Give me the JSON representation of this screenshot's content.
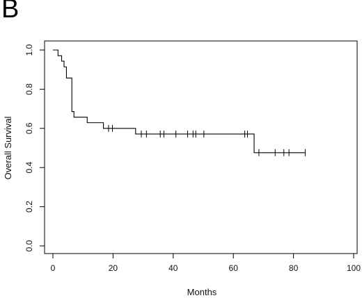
{
  "panel_label": "B",
  "chart_data": {
    "type": "line",
    "subtype": "kaplan-meier step curve",
    "title": "",
    "xlabel": "Months",
    "ylabel": "Overall Survival",
    "xlim": [
      0,
      100
    ],
    "ylim": [
      0,
      1.0
    ],
    "xticks": [
      0,
      20,
      40,
      60,
      80,
      100
    ],
    "yticks": [
      0.0,
      0.2,
      0.4,
      0.6,
      0.8,
      1.0
    ],
    "xtick_labels": [
      "0",
      "20",
      "40",
      "60",
      "80",
      "100"
    ],
    "ytick_labels": [
      "0.0",
      "0.2",
      "0.4",
      "0.6",
      "0.8",
      "1.0"
    ],
    "grid": false,
    "legend": "none",
    "series": [
      {
        "steps": [
          {
            "x": 0,
            "y": 1.0
          },
          {
            "x": 1.7,
            "y": 0.971
          },
          {
            "x": 2.9,
            "y": 0.943
          },
          {
            "x": 3.7,
            "y": 0.914
          },
          {
            "x": 4.5,
            "y": 0.857
          },
          {
            "x": 6.3,
            "y": 0.686
          },
          {
            "x": 7.0,
            "y": 0.657
          },
          {
            "x": 11.4,
            "y": 0.629
          },
          {
            "x": 16.8,
            "y": 0.6
          },
          {
            "x": 27.5,
            "y": 0.571
          },
          {
            "x": 66.9,
            "y": 0.476
          }
        ],
        "end_x": 83.9,
        "censored": [
          {
            "x": 18.5,
            "y": 0.6
          },
          {
            "x": 19.8,
            "y": 0.6
          },
          {
            "x": 29.4,
            "y": 0.571
          },
          {
            "x": 31.1,
            "y": 0.571
          },
          {
            "x": 35.7,
            "y": 0.571
          },
          {
            "x": 36.9,
            "y": 0.571
          },
          {
            "x": 40.9,
            "y": 0.571
          },
          {
            "x": 44.8,
            "y": 0.571
          },
          {
            "x": 46.6,
            "y": 0.571
          },
          {
            "x": 47.5,
            "y": 0.571
          },
          {
            "x": 50.2,
            "y": 0.571
          },
          {
            "x": 63.8,
            "y": 0.571
          },
          {
            "x": 64.7,
            "y": 0.571
          },
          {
            "x": 68.5,
            "y": 0.476
          },
          {
            "x": 73.9,
            "y": 0.476
          },
          {
            "x": 76.8,
            "y": 0.476
          },
          {
            "x": 78.5,
            "y": 0.476
          },
          {
            "x": 83.9,
            "y": 0.476
          }
        ]
      }
    ]
  }
}
